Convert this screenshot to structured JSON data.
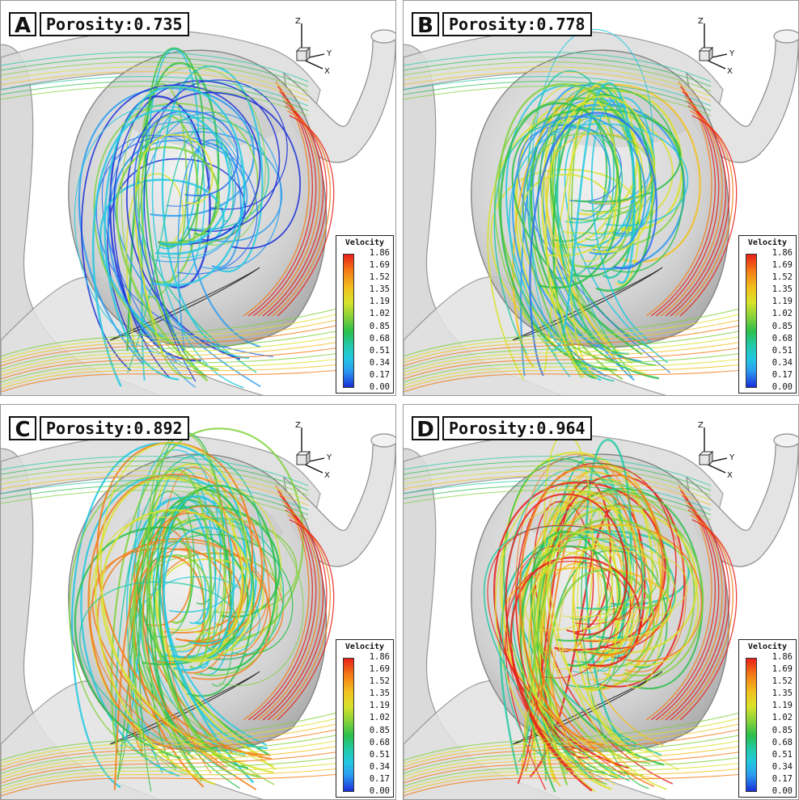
{
  "panels": [
    {
      "letter": "A",
      "porosity_label": "Porosity:0.735"
    },
    {
      "letter": "B",
      "porosity_label": "Porosity:0.778"
    },
    {
      "letter": "C",
      "porosity_label": "Porosity:0.892"
    },
    {
      "letter": "D",
      "porosity_label": "Porosity:0.964"
    }
  ],
  "axes": {
    "z": "Z",
    "y": "Y",
    "x": "X"
  },
  "legend": {
    "title": "Velocity",
    "ticks": [
      "1.86",
      "1.69",
      "1.52",
      "1.35",
      "1.19",
      "1.02",
      "0.85",
      "0.68",
      "0.51",
      "0.34",
      "0.17",
      "0.00"
    ]
  },
  "colors": {
    "vessel": "#cfcfcf",
    "vessel_edge": "#8c8c8c",
    "streamline_slow": "#1a2fd8",
    "streamline_mid": "#2bbf4b",
    "streamline_fast": "#e8201a"
  }
}
